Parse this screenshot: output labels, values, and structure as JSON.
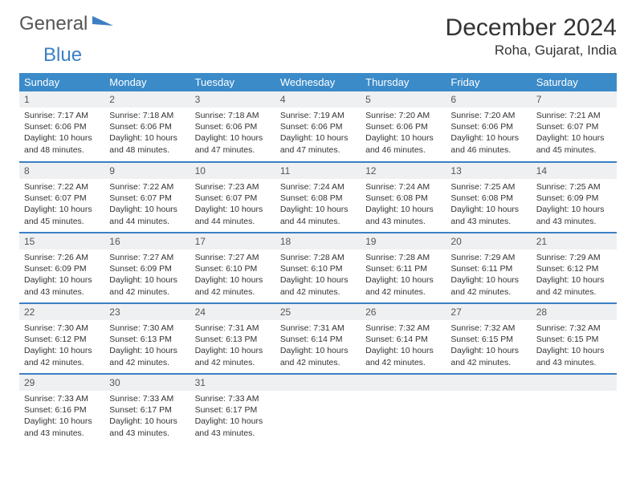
{
  "logo": {
    "text1": "General",
    "text2": "Blue",
    "icon_color": "#3b7fc4"
  },
  "title": "December 2024",
  "location": "Roha, Gujarat, India",
  "header_bg": "#3b8bc9",
  "header_fg": "#ffffff",
  "rule_color": "#3b7fc4",
  "daybar_bg": "#eef0f2",
  "day_names": [
    "Sunday",
    "Monday",
    "Tuesday",
    "Wednesday",
    "Thursday",
    "Friday",
    "Saturday"
  ],
  "weeks": [
    [
      {
        "n": "1",
        "sr": "7:17 AM",
        "ss": "6:06 PM",
        "dh": "10",
        "dm": "48"
      },
      {
        "n": "2",
        "sr": "7:18 AM",
        "ss": "6:06 PM",
        "dh": "10",
        "dm": "48"
      },
      {
        "n": "3",
        "sr": "7:18 AM",
        "ss": "6:06 PM",
        "dh": "10",
        "dm": "47"
      },
      {
        "n": "4",
        "sr": "7:19 AM",
        "ss": "6:06 PM",
        "dh": "10",
        "dm": "47"
      },
      {
        "n": "5",
        "sr": "7:20 AM",
        "ss": "6:06 PM",
        "dh": "10",
        "dm": "46"
      },
      {
        "n": "6",
        "sr": "7:20 AM",
        "ss": "6:06 PM",
        "dh": "10",
        "dm": "46"
      },
      {
        "n": "7",
        "sr": "7:21 AM",
        "ss": "6:07 PM",
        "dh": "10",
        "dm": "45"
      }
    ],
    [
      {
        "n": "8",
        "sr": "7:22 AM",
        "ss": "6:07 PM",
        "dh": "10",
        "dm": "45"
      },
      {
        "n": "9",
        "sr": "7:22 AM",
        "ss": "6:07 PM",
        "dh": "10",
        "dm": "44"
      },
      {
        "n": "10",
        "sr": "7:23 AM",
        "ss": "6:07 PM",
        "dh": "10",
        "dm": "44"
      },
      {
        "n": "11",
        "sr": "7:24 AM",
        "ss": "6:08 PM",
        "dh": "10",
        "dm": "44"
      },
      {
        "n": "12",
        "sr": "7:24 AM",
        "ss": "6:08 PM",
        "dh": "10",
        "dm": "43"
      },
      {
        "n": "13",
        "sr": "7:25 AM",
        "ss": "6:08 PM",
        "dh": "10",
        "dm": "43"
      },
      {
        "n": "14",
        "sr": "7:25 AM",
        "ss": "6:09 PM",
        "dh": "10",
        "dm": "43"
      }
    ],
    [
      {
        "n": "15",
        "sr": "7:26 AM",
        "ss": "6:09 PM",
        "dh": "10",
        "dm": "43"
      },
      {
        "n": "16",
        "sr": "7:27 AM",
        "ss": "6:09 PM",
        "dh": "10",
        "dm": "42"
      },
      {
        "n": "17",
        "sr": "7:27 AM",
        "ss": "6:10 PM",
        "dh": "10",
        "dm": "42"
      },
      {
        "n": "18",
        "sr": "7:28 AM",
        "ss": "6:10 PM",
        "dh": "10",
        "dm": "42"
      },
      {
        "n": "19",
        "sr": "7:28 AM",
        "ss": "6:11 PM",
        "dh": "10",
        "dm": "42"
      },
      {
        "n": "20",
        "sr": "7:29 AM",
        "ss": "6:11 PM",
        "dh": "10",
        "dm": "42"
      },
      {
        "n": "21",
        "sr": "7:29 AM",
        "ss": "6:12 PM",
        "dh": "10",
        "dm": "42"
      }
    ],
    [
      {
        "n": "22",
        "sr": "7:30 AM",
        "ss": "6:12 PM",
        "dh": "10",
        "dm": "42"
      },
      {
        "n": "23",
        "sr": "7:30 AM",
        "ss": "6:13 PM",
        "dh": "10",
        "dm": "42"
      },
      {
        "n": "24",
        "sr": "7:31 AM",
        "ss": "6:13 PM",
        "dh": "10",
        "dm": "42"
      },
      {
        "n": "25",
        "sr": "7:31 AM",
        "ss": "6:14 PM",
        "dh": "10",
        "dm": "42"
      },
      {
        "n": "26",
        "sr": "7:32 AM",
        "ss": "6:14 PM",
        "dh": "10",
        "dm": "42"
      },
      {
        "n": "27",
        "sr": "7:32 AM",
        "ss": "6:15 PM",
        "dh": "10",
        "dm": "42"
      },
      {
        "n": "28",
        "sr": "7:32 AM",
        "ss": "6:15 PM",
        "dh": "10",
        "dm": "43"
      }
    ],
    [
      {
        "n": "29",
        "sr": "7:33 AM",
        "ss": "6:16 PM",
        "dh": "10",
        "dm": "43"
      },
      {
        "n": "30",
        "sr": "7:33 AM",
        "ss": "6:17 PM",
        "dh": "10",
        "dm": "43"
      },
      {
        "n": "31",
        "sr": "7:33 AM",
        "ss": "6:17 PM",
        "dh": "10",
        "dm": "43"
      },
      null,
      null,
      null,
      null
    ]
  ]
}
